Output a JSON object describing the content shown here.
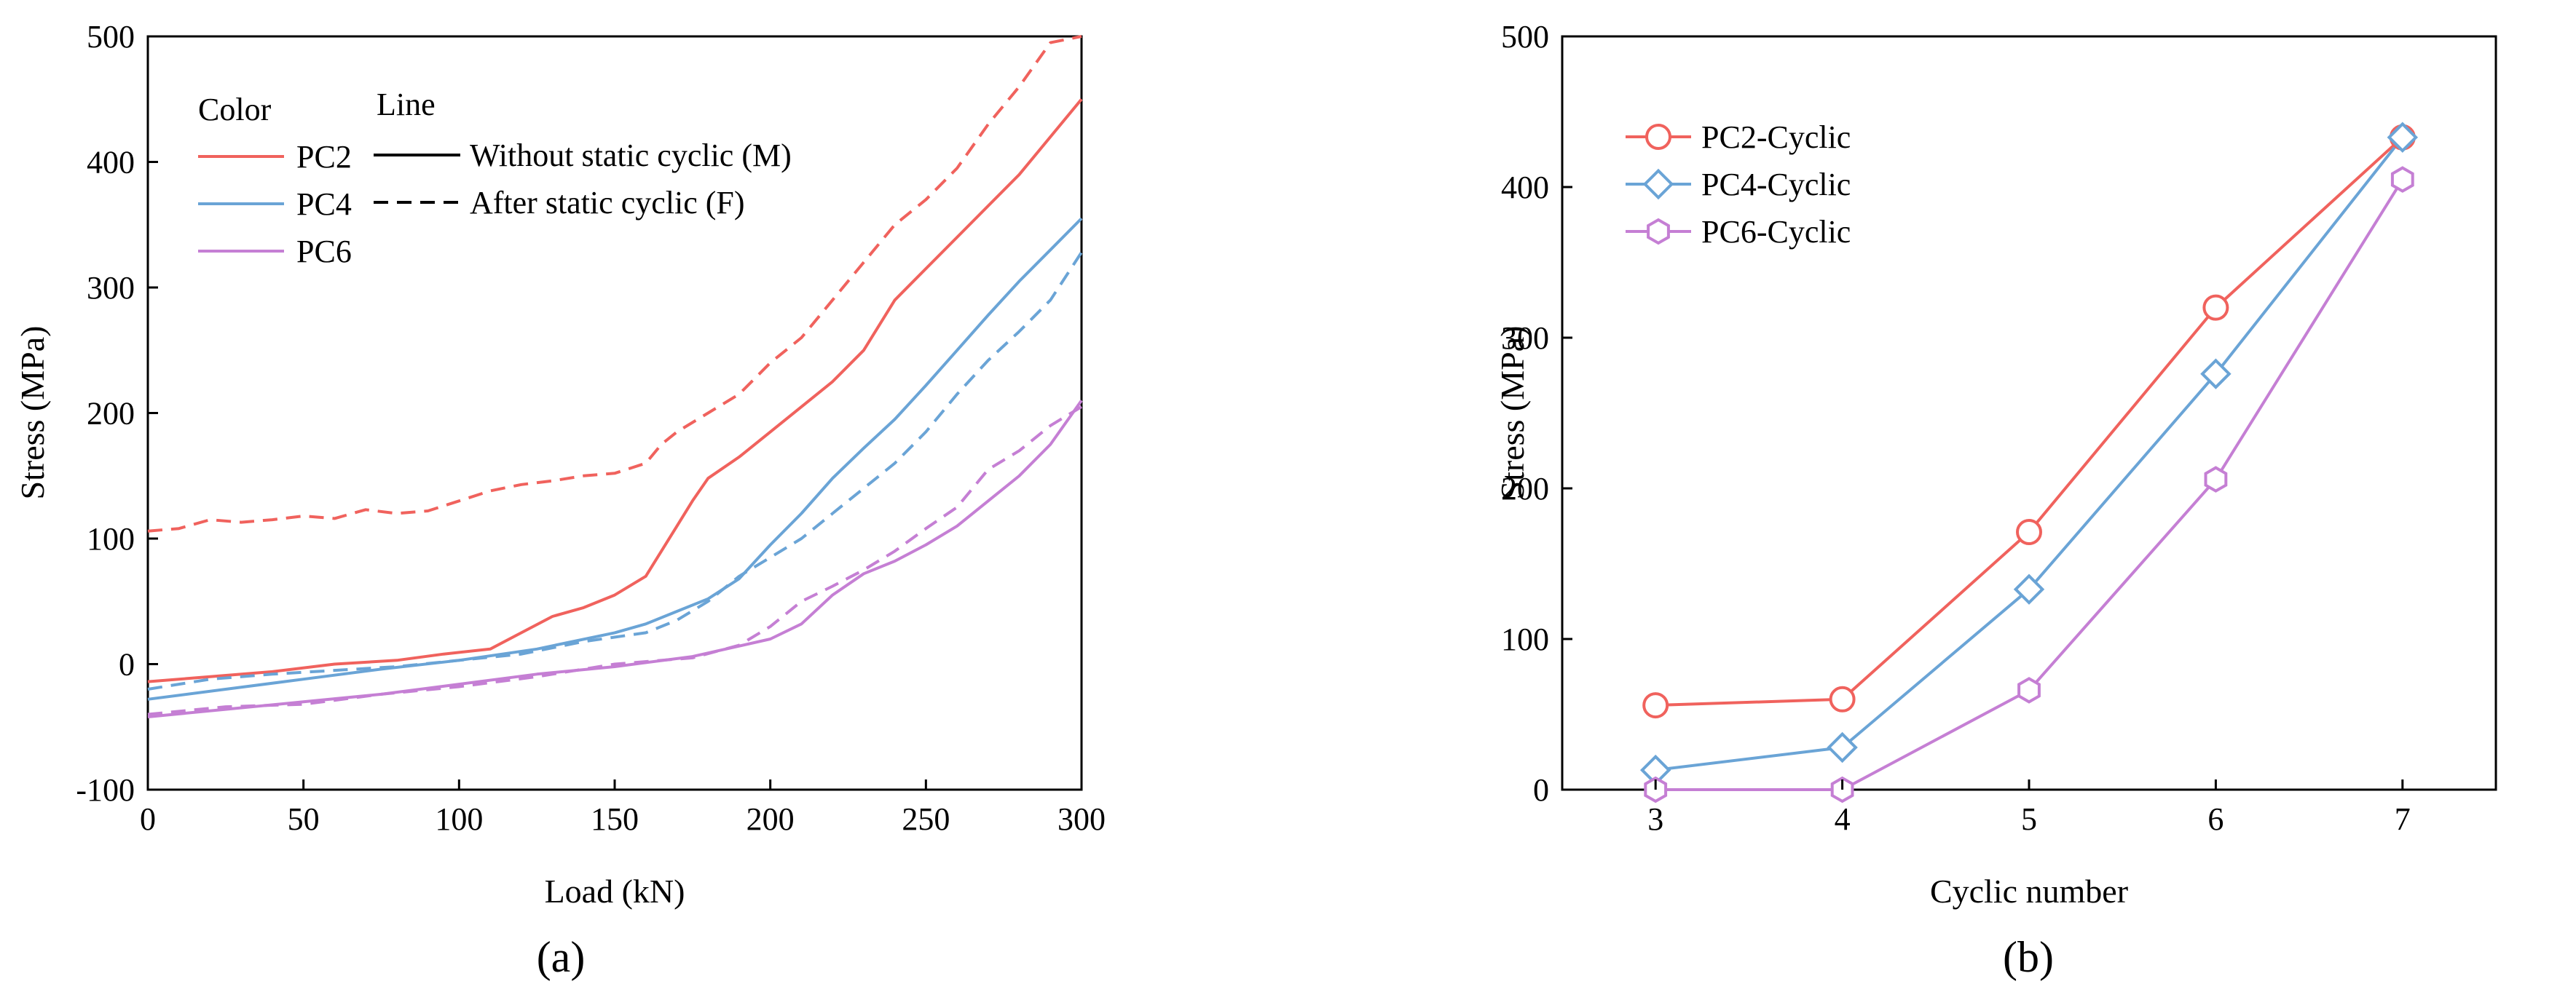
{
  "chart_data": [
    {
      "type": "line",
      "panel_label": "(a)",
      "xlabel": "Load (kN)",
      "ylabel": "Stress (MPa)",
      "xlim": [
        0,
        300
      ],
      "ylim": [
        -100,
        500
      ],
      "xticks": [
        "0",
        "50",
        "100",
        "150",
        "200",
        "250",
        "300"
      ],
      "yticks": [
        "-100",
        "0",
        "100",
        "200",
        "300",
        "400",
        "500"
      ],
      "legend": {
        "color_header": "Color",
        "line_header": "Line",
        "colors": [
          {
            "name": "PC2",
            "color": "#f0625d"
          },
          {
            "name": "PC4",
            "color": "#6aa4d6"
          },
          {
            "name": "PC6",
            "color": "#c57fd4"
          }
        ],
        "lines": [
          {
            "label": "Without static cyclic (M)",
            "style": "solid"
          },
          {
            "label": "After static cyclic (F)",
            "style": "dashed"
          }
        ]
      },
      "series": [
        {
          "name": "PC2 (M)",
          "color": "#f0625d",
          "style": "solid",
          "x": [
            0,
            20,
            40,
            60,
            80,
            95,
            110,
            120,
            130,
            140,
            150,
            160,
            165,
            170,
            175,
            180,
            190,
            200,
            210,
            220,
            230,
            240,
            250,
            260,
            270,
            280,
            290,
            300
          ],
          "y": [
            -14,
            -10,
            -6,
            0,
            3,
            8,
            12,
            25,
            38,
            45,
            55,
            70,
            90,
            110,
            130,
            148,
            165,
            185,
            205,
            225,
            250,
            290,
            315,
            340,
            365,
            390,
            420,
            450
          ]
        },
        {
          "name": "PC2 (F)",
          "color": "#f0625d",
          "style": "dashed",
          "x": [
            0,
            10,
            20,
            30,
            40,
            50,
            60,
            70,
            80,
            90,
            100,
            110,
            120,
            130,
            140,
            150,
            160,
            165,
            170,
            180,
            190,
            200,
            210,
            220,
            230,
            240,
            250,
            260,
            270,
            280,
            290,
            300
          ],
          "y": [
            106,
            108,
            115,
            113,
            115,
            118,
            116,
            123,
            120,
            122,
            130,
            138,
            143,
            146,
            150,
            152,
            160,
            175,
            185,
            200,
            215,
            240,
            260,
            290,
            320,
            350,
            370,
            395,
            430,
            460,
            495,
            500
          ]
        },
        {
          "name": "PC4 (M)",
          "color": "#6aa4d6",
          "style": "solid",
          "x": [
            0,
            25,
            50,
            75,
            100,
            125,
            150,
            160,
            170,
            180,
            190,
            200,
            210,
            220,
            230,
            240,
            250,
            260,
            270,
            280,
            290,
            300
          ],
          "y": [
            -28,
            -20,
            -12,
            -4,
            3,
            12,
            25,
            32,
            42,
            52,
            68,
            95,
            120,
            148,
            172,
            195,
            222,
            250,
            278,
            305,
            330,
            355
          ]
        },
        {
          "name": "PC4 (F)",
          "color": "#6aa4d6",
          "style": "dashed",
          "x": [
            0,
            20,
            40,
            60,
            80,
            100,
            120,
            140,
            160,
            170,
            180,
            190,
            200,
            210,
            220,
            230,
            240,
            250,
            260,
            270,
            280,
            290,
            300
          ],
          "y": [
            -20,
            -12,
            -8,
            -5,
            -2,
            3,
            8,
            18,
            25,
            35,
            50,
            70,
            85,
            100,
            120,
            140,
            160,
            185,
            215,
            242,
            265,
            290,
            328
          ]
        },
        {
          "name": "PC6 (M)",
          "color": "#c57fd4",
          "style": "solid",
          "x": [
            0,
            25,
            50,
            75,
            100,
            125,
            150,
            175,
            200,
            210,
            220,
            230,
            240,
            250,
            260,
            270,
            280,
            290,
            300
          ],
          "y": [
            -42,
            -36,
            -30,
            -24,
            -16,
            -8,
            -2,
            6,
            20,
            32,
            55,
            72,
            82,
            95,
            110,
            130,
            150,
            175,
            210
          ]
        },
        {
          "name": "PC6 (F)",
          "color": "#c57fd4",
          "style": "dashed",
          "x": [
            0,
            25,
            50,
            75,
            100,
            125,
            150,
            175,
            190,
            200,
            210,
            220,
            230,
            240,
            250,
            260,
            270,
            280,
            290,
            300
          ],
          "y": [
            -40,
            -34,
            -32,
            -24,
            -18,
            -10,
            0,
            5,
            15,
            30,
            50,
            62,
            75,
            90,
            108,
            125,
            155,
            170,
            190,
            205
          ]
        }
      ]
    },
    {
      "type": "line",
      "panel_label": "(b)",
      "xlabel": "Cyclic number",
      "ylabel": "Stress (MPa)",
      "xlim": [
        2.5,
        7.5
      ],
      "ylim": [
        0,
        500
      ],
      "xticks": [
        "3",
        "4",
        "5",
        "6",
        "7"
      ],
      "yticks": [
        "0",
        "100",
        "200",
        "300",
        "400",
        "500"
      ],
      "legend_position": "top-left",
      "series": [
        {
          "name": "PC2-Cyclic",
          "color": "#f0625d",
          "marker": "circle",
          "x": [
            3,
            4,
            5,
            6,
            7
          ],
          "y": [
            56,
            60,
            171,
            320,
            433
          ]
        },
        {
          "name": "PC4-Cyclic",
          "color": "#6aa4d6",
          "marker": "diamond",
          "x": [
            3,
            4,
            5,
            6,
            7
          ],
          "y": [
            13,
            28,
            133,
            276,
            433
          ]
        },
        {
          "name": "PC6-Cyclic",
          "color": "#c57fd4",
          "marker": "hexagon",
          "x": [
            3,
            4,
            5,
            6,
            7
          ],
          "y": [
            0,
            0,
            66,
            206,
            405
          ]
        }
      ]
    }
  ]
}
